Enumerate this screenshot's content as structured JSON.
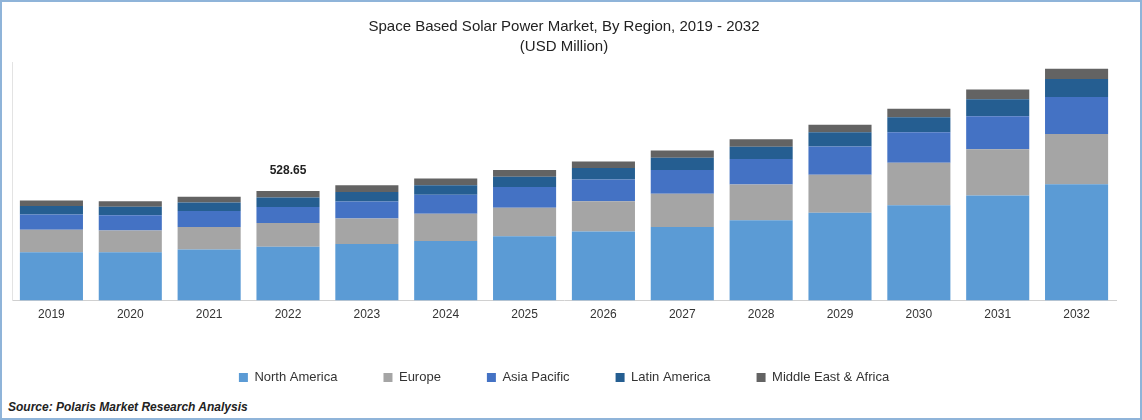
{
  "chart_data": {
    "type": "bar",
    "stacked": true,
    "title": "Space Based Solar Power Market, By Region, 2019 - 2032",
    "subtitle": "(USD Million)",
    "source": "Source: Polaris Market Research Analysis",
    "categories": [
      "2019",
      "2020",
      "2021",
      "2022",
      "2023",
      "2024",
      "2025",
      "2026",
      "2027",
      "2028",
      "2029",
      "2030",
      "2031",
      "2032"
    ],
    "series": [
      {
        "name": "North America",
        "color": "#5b9bd5",
        "values": [
          233,
          233,
          246,
          259.8,
          273,
          287,
          310,
          333,
          355,
          387,
          424,
          460,
          506,
          561
        ]
      },
      {
        "name": "Europe",
        "color": "#a5a5a5",
        "values": [
          109,
          105,
          109,
          113.9,
          123,
          132,
          137,
          146,
          160,
          173,
          182,
          205,
          223,
          242
        ]
      },
      {
        "name": "Asia Pacific",
        "color": "#4472c4",
        "values": [
          73,
          73,
          77,
          77.5,
          82,
          91,
          100,
          105,
          114,
          123,
          137,
          146,
          160,
          178
        ]
      },
      {
        "name": "Latin America",
        "color": "#255e91",
        "values": [
          41,
          41,
          41,
          45.6,
          46,
          46,
          50,
          55,
          59,
          59,
          68,
          73,
          82,
          87
        ]
      },
      {
        "name": "Middle East & Africa",
        "color": "#636363",
        "values": [
          27,
          27,
          27,
          31.85,
          32,
          32,
          32,
          32,
          36,
          36,
          36,
          41,
          46,
          50
        ]
      }
    ],
    "annotations": [
      {
        "x": "2022",
        "text": "528.65"
      }
    ],
    "ylim": [
      0,
      1150
    ],
    "yticks": [],
    "grid": false,
    "legend": "bottom",
    "tick_labels": "x"
  }
}
